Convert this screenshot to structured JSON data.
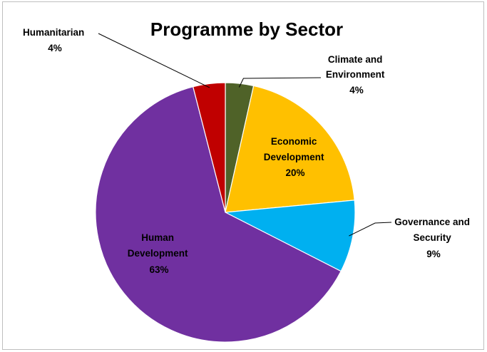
{
  "chart_data": {
    "type": "pie",
    "title": "Programme by Sector",
    "start": "top, clockwise",
    "slices": [
      {
        "name_lines": [
          "Climate and",
          "Environment"
        ],
        "percent_label": "4%",
        "value": 3.5,
        "color": "#4f6228"
      },
      {
        "name_lines": [
          "Economic",
          "Development"
        ],
        "percent_label": "20%",
        "value": 20,
        "color": "#ffc000"
      },
      {
        "name_lines": [
          "Governance and",
          "Security"
        ],
        "percent_label": "9%",
        "value": 9,
        "color": "#00b0f0"
      },
      {
        "name_lines": [
          "Human",
          "Development"
        ],
        "percent_label": "63%",
        "value": 63.5,
        "color": "#7030a0"
      },
      {
        "name_lines": [
          "Humanitarian"
        ],
        "percent_label": "4%",
        "value": 4,
        "color": "#c00000"
      }
    ]
  }
}
